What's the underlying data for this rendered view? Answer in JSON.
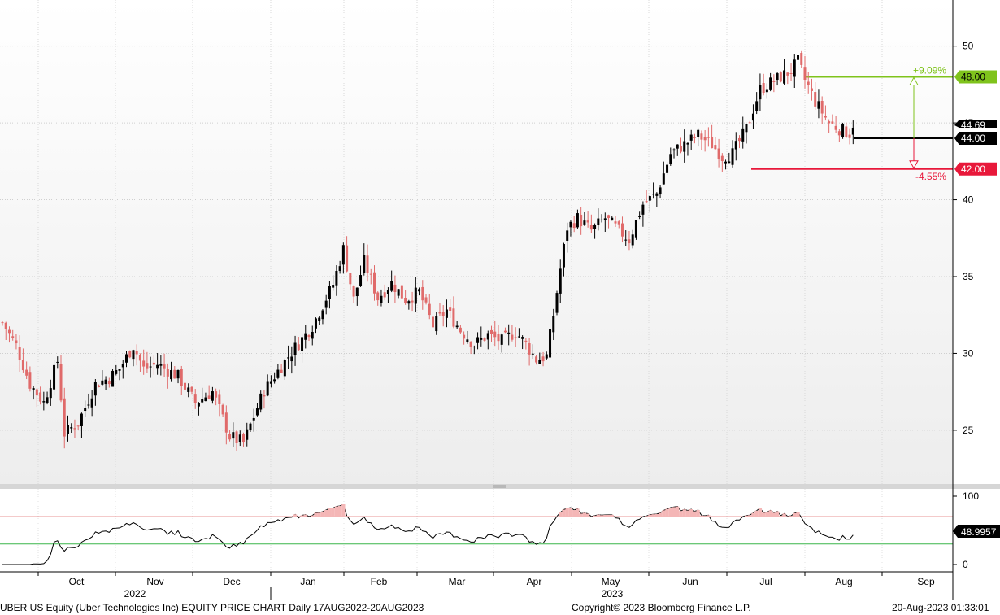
{
  "footer": {
    "left": "UBER US Equity (Uber Technologies Inc) EQUITY PRICE CHART  Daily 17AUG2022-20AUG2023",
    "center": "Copyright© 2023 Bloomberg Finance L.P.",
    "right": "20-Aug-2023 01:33:01"
  },
  "chart_data": {
    "type": "candlestick",
    "ticker": "UBER US Equity",
    "x_axis": {
      "months": [
        "Oct",
        "Nov",
        "Dec",
        "Jan",
        "Feb",
        "Mar",
        "Apr",
        "May",
        "Jun",
        "Jul",
        "Aug",
        "Sep"
      ],
      "years": [
        "2022",
        "2023"
      ]
    },
    "price_axis": {
      "ticks": [
        25,
        30,
        35,
        40,
        45,
        50
      ],
      "ylim": [
        21.5,
        53
      ]
    },
    "price_keypoints": [
      [
        0,
        32.0
      ],
      [
        4,
        30.5
      ],
      [
        8,
        28.0
      ],
      [
        12,
        26.8
      ],
      [
        16,
        29.5
      ],
      [
        18,
        24.8
      ],
      [
        22,
        25.5
      ],
      [
        27,
        28.0
      ],
      [
        31,
        28.4
      ],
      [
        34,
        29.0
      ],
      [
        38,
        30.5
      ],
      [
        41,
        29.0
      ],
      [
        45,
        29.3
      ],
      [
        51,
        28.5
      ],
      [
        56,
        26.8
      ],
      [
        61,
        27.5
      ],
      [
        66,
        24.6
      ],
      [
        70,
        24.2
      ],
      [
        76,
        27.6
      ],
      [
        83,
        29.8
      ],
      [
        90,
        31.8
      ],
      [
        96,
        34.5
      ],
      [
        99,
        36.8
      ],
      [
        102,
        33.5
      ],
      [
        105,
        36.0
      ],
      [
        109,
        33.6
      ],
      [
        113,
        34.6
      ],
      [
        117,
        33.5
      ],
      [
        121,
        34.0
      ],
      [
        125,
        31.8
      ],
      [
        129,
        32.8
      ],
      [
        133,
        31.5
      ],
      [
        137,
        30.6
      ],
      [
        141,
        31.2
      ],
      [
        145,
        30.8
      ],
      [
        149,
        31.4
      ],
      [
        152,
        30.6
      ],
      [
        155,
        29.6
      ],
      [
        158,
        29.8
      ],
      [
        160,
        32.5
      ],
      [
        162,
        35.5
      ],
      [
        164,
        38.2
      ],
      [
        167,
        38.8
      ],
      [
        171,
        38.0
      ],
      [
        175,
        38.8
      ],
      [
        179,
        38.0
      ],
      [
        182,
        37.4
      ],
      [
        186,
        39.7
      ],
      [
        190,
        40.4
      ],
      [
        194,
        43.0
      ],
      [
        198,
        43.6
      ],
      [
        202,
        44.2
      ],
      [
        206,
        43.6
      ],
      [
        209,
        42.8
      ],
      [
        212,
        43.0
      ],
      [
        216,
        44.6
      ],
      [
        220,
        47.2
      ],
      [
        223,
        47.6
      ],
      [
        226,
        48.0
      ],
      [
        229,
        48.4
      ],
      [
        231,
        49.0
      ],
      [
        233,
        47.8
      ],
      [
        236,
        46.4
      ],
      [
        240,
        45.0
      ],
      [
        244,
        44.5
      ],
      [
        247,
        44.2
      ]
    ],
    "rsi": {
      "upper": 70,
      "lower": 30,
      "ticks": [
        0,
        100
      ],
      "last": "48.9957"
    },
    "levels": [
      {
        "value": 48.0,
        "label": "48.00",
        "pct": "+9.09%",
        "color": "#7fc31c"
      },
      {
        "value": 44.0,
        "label": "44.00",
        "color": "#000000"
      },
      {
        "value": 42.0,
        "label": "42.00",
        "pct": "-4.55%",
        "color": "#e8183a"
      }
    ],
    "last_price": "44.69"
  }
}
